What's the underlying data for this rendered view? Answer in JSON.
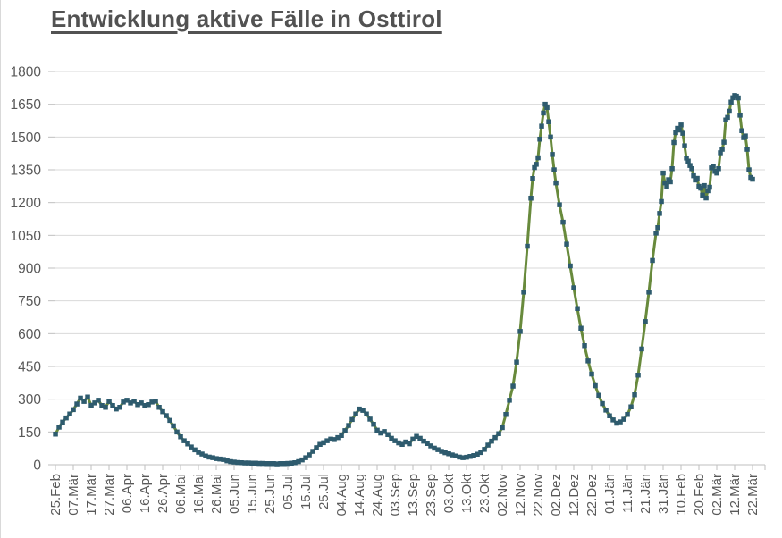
{
  "chart_data": {
    "type": "line",
    "title": "Entwicklung aktive Fälle in Osttirol",
    "xlabel": "",
    "ylabel": "",
    "ylim": [
      0,
      1800
    ],
    "y_ticks": [
      0,
      150,
      300,
      450,
      600,
      750,
      900,
      1050,
      1200,
      1350,
      1500,
      1650,
      1800
    ],
    "x_tick_interval_days": 10,
    "x_range_days": [
      0,
      390
    ],
    "x_tick_labels": [
      "25.Feb",
      "07.Mär",
      "17.Mär",
      "27.Mär",
      "06.Apr",
      "16.Apr",
      "26.Apr",
      "06.Mai",
      "16.Mai",
      "26.Mai",
      "05.Jun",
      "15.Jun",
      "25.Jun",
      "05.Jul",
      "15.Jul",
      "25.Jul",
      "04.Aug",
      "14.Aug",
      "24.Aug",
      "03.Sep",
      "13.Sep",
      "23.Sep",
      "03.Okt",
      "13.Okt",
      "23.Okt",
      "02.Nov",
      "12.Nov",
      "22.Nov",
      "02.Dez",
      "12.Dez",
      "22.Dez",
      "01.Jän",
      "11.Jän",
      "21.Jän",
      "31.Jän",
      "10.Feb",
      "20.Feb",
      "02.Mär",
      "12.Mär",
      "22.Mär"
    ],
    "grid": "horizontal",
    "legend": "none",
    "colors": {
      "title": "#525252",
      "axis_text": "#595959",
      "gridline": "#d9d9d9",
      "axis_line": "#bfbfbf"
    },
    "series": [
      {
        "marker": "square",
        "line_color": "#688a3c",
        "marker_color": "#2e5b6e",
        "points": [
          [
            0,
            140
          ],
          [
            2,
            172
          ],
          [
            4,
            195
          ],
          [
            6,
            214
          ],
          [
            8,
            232
          ],
          [
            10,
            252
          ],
          [
            12,
            278
          ],
          [
            14,
            305
          ],
          [
            16,
            290
          ],
          [
            18,
            310
          ],
          [
            20,
            272
          ],
          [
            22,
            283
          ],
          [
            24,
            295
          ],
          [
            26,
            271
          ],
          [
            28,
            263
          ],
          [
            30,
            290
          ],
          [
            32,
            271
          ],
          [
            34,
            255
          ],
          [
            36,
            263
          ],
          [
            38,
            287
          ],
          [
            40,
            295
          ],
          [
            42,
            283
          ],
          [
            44,
            291
          ],
          [
            46,
            275
          ],
          [
            48,
            283
          ],
          [
            50,
            271
          ],
          [
            52,
            275
          ],
          [
            54,
            287
          ],
          [
            56,
            291
          ],
          [
            58,
            263
          ],
          [
            60,
            243
          ],
          [
            62,
            225
          ],
          [
            64,
            203
          ],
          [
            66,
            178
          ],
          [
            68,
            150
          ],
          [
            70,
            128
          ],
          [
            72,
            110
          ],
          [
            74,
            95
          ],
          [
            76,
            81
          ],
          [
            78,
            68
          ],
          [
            80,
            57
          ],
          [
            82,
            49
          ],
          [
            84,
            40
          ],
          [
            86,
            35
          ],
          [
            88,
            32
          ],
          [
            90,
            28
          ],
          [
            92,
            26
          ],
          [
            94,
            24
          ],
          [
            96,
            18
          ],
          [
            98,
            14
          ],
          [
            100,
            12
          ],
          [
            102,
            10
          ],
          [
            104,
            9
          ],
          [
            106,
            8
          ],
          [
            108,
            8
          ],
          [
            110,
            7
          ],
          [
            112,
            7
          ],
          [
            114,
            6
          ],
          [
            116,
            6
          ],
          [
            118,
            5
          ],
          [
            120,
            5
          ],
          [
            122,
            5
          ],
          [
            124,
            4
          ],
          [
            126,
            5
          ],
          [
            128,
            5
          ],
          [
            130,
            6
          ],
          [
            132,
            7
          ],
          [
            134,
            9
          ],
          [
            136,
            14
          ],
          [
            138,
            22
          ],
          [
            140,
            32
          ],
          [
            142,
            45
          ],
          [
            144,
            61
          ],
          [
            146,
            78
          ],
          [
            148,
            93
          ],
          [
            150,
            101
          ],
          [
            152,
            110
          ],
          [
            154,
            117
          ],
          [
            156,
            115
          ],
          [
            158,
            124
          ],
          [
            160,
            134
          ],
          [
            162,
            156
          ],
          [
            164,
            180
          ],
          [
            166,
            207
          ],
          [
            168,
            232
          ],
          [
            170,
            255
          ],
          [
            172,
            249
          ],
          [
            174,
            232
          ],
          [
            176,
            209
          ],
          [
            178,
            185
          ],
          [
            180,
            158
          ],
          [
            182,
            145
          ],
          [
            184,
            152
          ],
          [
            186,
            138
          ],
          [
            188,
            121
          ],
          [
            190,
            110
          ],
          [
            192,
            100
          ],
          [
            194,
            93
          ],
          [
            196,
            104
          ],
          [
            198,
            96
          ],
          [
            200,
            117
          ],
          [
            202,
            130
          ],
          [
            204,
            121
          ],
          [
            206,
            108
          ],
          [
            208,
            97
          ],
          [
            210,
            86
          ],
          [
            212,
            76
          ],
          [
            214,
            69
          ],
          [
            216,
            61
          ],
          [
            218,
            55
          ],
          [
            220,
            50
          ],
          [
            222,
            45
          ],
          [
            224,
            40
          ],
          [
            226,
            35
          ],
          [
            228,
            32
          ],
          [
            230,
            34
          ],
          [
            232,
            38
          ],
          [
            234,
            42
          ],
          [
            236,
            48
          ],
          [
            238,
            56
          ],
          [
            240,
            70
          ],
          [
            242,
            90
          ],
          [
            244,
            108
          ],
          [
            246,
            124
          ],
          [
            248,
            142
          ],
          [
            250,
            170
          ],
          [
            252,
            230
          ],
          [
            254,
            295
          ],
          [
            256,
            360
          ],
          [
            258,
            470
          ],
          [
            260,
            610
          ],
          [
            262,
            790
          ],
          [
            264,
            1000
          ],
          [
            266,
            1220
          ],
          [
            267,
            1310
          ],
          [
            268,
            1360
          ],
          [
            269,
            1375
          ],
          [
            270,
            1405
          ],
          [
            271,
            1490
          ],
          [
            272,
            1550
          ],
          [
            273,
            1610
          ],
          [
            274,
            1650
          ],
          [
            275,
            1635
          ],
          [
            276,
            1570
          ],
          [
            277,
            1500
          ],
          [
            278,
            1420
          ],
          [
            279,
            1350
          ],
          [
            280,
            1290
          ],
          [
            282,
            1190
          ],
          [
            284,
            1110
          ],
          [
            286,
            1010
          ],
          [
            288,
            910
          ],
          [
            290,
            810
          ],
          [
            292,
            715
          ],
          [
            294,
            625
          ],
          [
            296,
            545
          ],
          [
            298,
            475
          ],
          [
            300,
            415
          ],
          [
            302,
            362
          ],
          [
            304,
            318
          ],
          [
            306,
            280
          ],
          [
            308,
            250
          ],
          [
            310,
            224
          ],
          [
            312,
            205
          ],
          [
            314,
            190
          ],
          [
            316,
            196
          ],
          [
            318,
            208
          ],
          [
            320,
            230
          ],
          [
            322,
            265
          ],
          [
            324,
            320
          ],
          [
            326,
            410
          ],
          [
            328,
            530
          ],
          [
            330,
            655
          ],
          [
            332,
            790
          ],
          [
            334,
            935
          ],
          [
            336,
            1060
          ],
          [
            337,
            1085
          ],
          [
            338,
            1150
          ],
          [
            339,
            1205
          ],
          [
            340,
            1335
          ],
          [
            341,
            1290
          ],
          [
            342,
            1275
          ],
          [
            343,
            1305
          ],
          [
            344,
            1295
          ],
          [
            345,
            1355
          ],
          [
            346,
            1475
          ],
          [
            347,
            1520
          ],
          [
            348,
            1540
          ],
          [
            349,
            1532
          ],
          [
            350,
            1555
          ],
          [
            351,
            1517
          ],
          [
            352,
            1460
          ],
          [
            353,
            1404
          ],
          [
            354,
            1390
          ],
          [
            355,
            1370
          ],
          [
            356,
            1355
          ],
          [
            357,
            1323
          ],
          [
            358,
            1303
          ],
          [
            359,
            1311
          ],
          [
            360,
            1274
          ],
          [
            361,
            1266
          ],
          [
            362,
            1234
          ],
          [
            363,
            1278
          ],
          [
            364,
            1221
          ],
          [
            365,
            1254
          ],
          [
            366,
            1270
          ],
          [
            367,
            1359
          ],
          [
            368,
            1367
          ],
          [
            369,
            1343
          ],
          [
            370,
            1335
          ],
          [
            371,
            1355
          ],
          [
            372,
            1428
          ],
          [
            373,
            1444
          ],
          [
            374,
            1476
          ],
          [
            375,
            1578
          ],
          [
            376,
            1590
          ],
          [
            377,
            1618
          ],
          [
            378,
            1660
          ],
          [
            379,
            1680
          ],
          [
            380,
            1690
          ],
          [
            381,
            1687
          ],
          [
            382,
            1679
          ],
          [
            383,
            1600
          ],
          [
            384,
            1529
          ],
          [
            385,
            1497
          ],
          [
            386,
            1505
          ],
          [
            387,
            1444
          ],
          [
            388,
            1350
          ],
          [
            389,
            1315
          ],
          [
            390,
            1307
          ]
        ]
      }
    ]
  }
}
